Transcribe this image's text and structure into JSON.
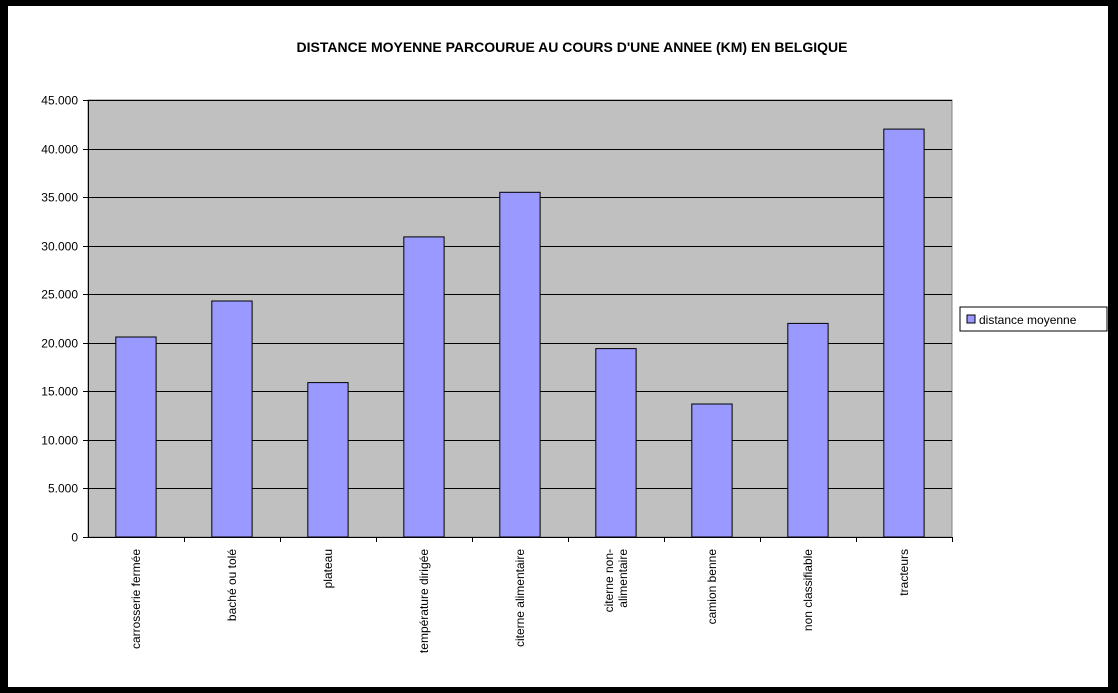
{
  "chart_data": {
    "type": "bar",
    "title": "DISTANCE MOYENNE PARCOURUE AU COURS D'UNE ANNEE (KM) EN BELGIQUE",
    "categories": [
      [
        "carrosserie fermée"
      ],
      [
        "baché ou tolé"
      ],
      [
        "plateau"
      ],
      [
        "température dirigée"
      ],
      [
        "citerne alimentaire"
      ],
      [
        "citerne non-",
        "alimentaire"
      ],
      [
        "camion benne"
      ],
      [
        "non classifiable"
      ],
      [
        "tracteurs"
      ]
    ],
    "series": [
      {
        "name": "distance moyenne",
        "values": [
          20600,
          24300,
          15900,
          30900,
          35500,
          19400,
          13700,
          22000,
          42000
        ]
      }
    ],
    "ylim": [
      0,
      45000
    ],
    "yticks": [
      "0",
      "5.000",
      "10.000",
      "15.000",
      "20.000",
      "25.000",
      "30.000",
      "35.000",
      "40.000",
      "45.000"
    ],
    "grid": true,
    "legend_position": "right",
    "colors": {
      "bar_fill": "#9999ff",
      "bar_stroke": "#000000",
      "plot_bg": "#c0c0c0"
    }
  }
}
